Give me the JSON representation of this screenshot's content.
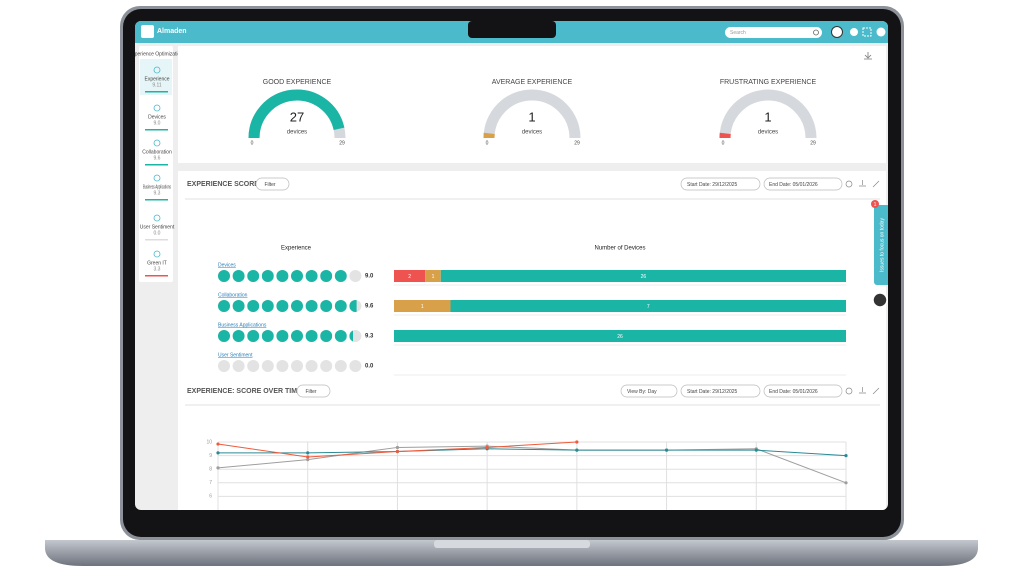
{
  "header": {
    "logo": "Almaden",
    "search": "Search"
  },
  "sidebar": {
    "title": "Experience Optimization",
    "items": [
      {
        "label": "Experience",
        "score": "9.11"
      },
      {
        "label": "Devices",
        "score": "9.0"
      },
      {
        "label": "Collaboration",
        "score": "9.6"
      },
      {
        "label": "Business Applications",
        "score": "9.3"
      },
      {
        "label": "User Sentiment",
        "score": "0.0"
      },
      {
        "label": "Green IT",
        "score": "3.3"
      }
    ]
  },
  "gauges": [
    {
      "title": "GOOD EXPERIENCE",
      "value": 27,
      "unit": "devices",
      "min": 0,
      "max": 29,
      "color": "#1bb5a5"
    },
    {
      "title": "AVERAGE EXPERIENCE",
      "value": 1,
      "unit": "devices",
      "min": 0,
      "max": 29,
      "color": "#d9a04a"
    },
    {
      "title": "FRUSTRATING EXPERIENCE",
      "value": 1,
      "unit": "devices",
      "min": 0,
      "max": 29,
      "color": "#ef5350"
    }
  ],
  "score_panel": {
    "title": "EXPERIENCE SCORE",
    "filter": "Filter",
    "start_date": "Start Date: 29/12/2025",
    "end_date": "End Date: 05/01/2026",
    "experience_header": "Experience",
    "devices_header": "Number of Devices",
    "rows": [
      {
        "label": "Devices",
        "score": 9.0,
        "score_label": "9.0",
        "segments": [
          {
            "value": 2,
            "color": "#ef5350"
          },
          {
            "value": 1,
            "color": "#d9a04a"
          },
          {
            "value": 26,
            "color": "#1bb5a5"
          }
        ]
      },
      {
        "label": "Collaboration",
        "score": 9.6,
        "score_label": "9.6",
        "segments": [
          {
            "value": 1,
            "color": "#d9a04a"
          },
          {
            "value": 7,
            "color": "#1bb5a5"
          }
        ]
      },
      {
        "label": "Business Applications",
        "score": 9.3,
        "score_label": "9.3",
        "segments": [
          {
            "value": 26,
            "color": "#1bb5a5"
          }
        ]
      },
      {
        "label": "User Sentiment",
        "score": 0.0,
        "score_label": "0.0",
        "segments": []
      }
    ]
  },
  "side_tab": {
    "label": "Issues to focus on today",
    "badge": "1"
  },
  "trend_panel": {
    "filter": "Filter",
    "view_by": "View By: Day",
    "start_date": "Start Date: 29/12/2025",
    "end_date": "End Date: 05/01/2026"
  },
  "chart_data": {
    "type": "line",
    "title": "EXPERIENCE: SCORE OVER TIME",
    "categories": [
      null,
      null,
      null,
      null,
      null,
      null,
      null,
      null
    ],
    "series": [
      {
        "color": "#9e9e9e",
        "values": [
          8.1,
          8.7,
          9.6,
          9.7,
          9.4,
          9.4,
          9.5,
          7.0
        ]
      },
      {
        "color": "#2a8a94",
        "values": [
          9.2,
          9.2,
          9.3,
          9.5,
          9.4,
          9.4,
          9.4,
          9.0
        ]
      },
      {
        "color": "#ef5a3c",
        "values": [
          9.85,
          8.9,
          9.3,
          9.6,
          10.0,
          null,
          null,
          null
        ]
      }
    ],
    "ylim": [
      5,
      10
    ],
    "yticks": [
      6,
      7,
      8,
      9,
      10
    ],
    "grid": true
  }
}
